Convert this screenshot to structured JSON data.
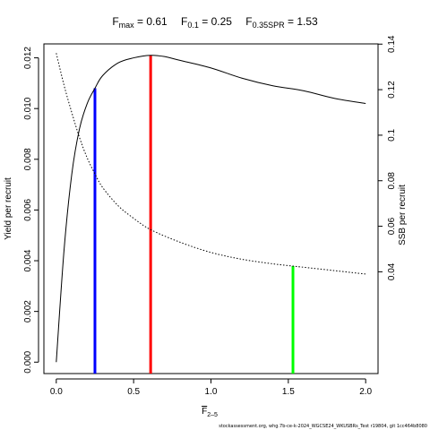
{
  "chart_data": {
    "type": "line",
    "title": {
      "fmax": {
        "main": "F",
        "sub": "max",
        "rest": " = 0.61"
      },
      "f01": {
        "main": "F",
        "sub": "0.1",
        "rest": " = 0.25"
      },
      "f035spr": {
        "main": "F",
        "sub": "0.35SPR",
        "rest": " = 1.53"
      }
    },
    "xlabel": {
      "main": "F",
      "sub": "2–5"
    },
    "ylabel_left": "Yield per recruit",
    "ylabel_right": "SSB per recruit",
    "x_ticks": [
      "0.0",
      "0.5",
      "1.0",
      "1.5",
      "2.0"
    ],
    "x_tick_values": [
      0,
      0.5,
      1.0,
      1.5,
      2.0
    ],
    "xlim": [
      -0.08,
      2.08
    ],
    "y_left_ticks": [
      "0.000",
      "0.002",
      "0.004",
      "0.006",
      "0.008",
      "0.010",
      "0.012"
    ],
    "y_left_tick_values": [
      0,
      0.002,
      0.004,
      0.006,
      0.008,
      0.01,
      0.012
    ],
    "ylim_left": [
      -0.00045,
      0.01255
    ],
    "y_right_ticks": [
      "0.04",
      "0.06",
      "0.08",
      "0.1",
      "0.12",
      "0.14"
    ],
    "y_right_tick_values": [
      0.04,
      0.06,
      0.08,
      0.1,
      0.12,
      0.14
    ],
    "ylim_right": [
      -0.0047,
      0.1401
    ],
    "series": [
      {
        "axis": "left",
        "style": "solid",
        "x": [
          0,
          0.05,
          0.1,
          0.15,
          0.2,
          0.25,
          0.3,
          0.4,
          0.5,
          0.61,
          0.7,
          0.8,
          1.0,
          1.2,
          1.4,
          1.6,
          1.8,
          2.0
        ],
        "y": [
          0,
          0.0044,
          0.0074,
          0.0092,
          0.0102,
          0.0108,
          0.0113,
          0.0118,
          0.012,
          0.0121,
          0.01205,
          0.0119,
          0.0116,
          0.0112,
          0.0109,
          0.0107,
          0.0104,
          0.0102
        ]
      },
      {
        "axis": "right",
        "style": "dotted",
        "x": [
          0,
          0.05,
          0.1,
          0.15,
          0.2,
          0.25,
          0.3,
          0.4,
          0.5,
          0.61,
          0.8,
          1.0,
          1.2,
          1.4,
          1.53,
          1.6,
          1.8,
          2.0
        ],
        "y": [
          0.136,
          0.122,
          0.11,
          0.099,
          0.09,
          0.083,
          0.077,
          0.069,
          0.0635,
          0.0585,
          0.053,
          0.0485,
          0.0455,
          0.0435,
          0.0425,
          0.042,
          0.0405,
          0.039
        ]
      }
    ],
    "reference_lines": [
      {
        "label": "F0.1",
        "x": 0.25,
        "axis": "left",
        "y": 0.0108,
        "color": "#0000ff"
      },
      {
        "label": "Fmax",
        "x": 0.61,
        "axis": "left",
        "y": 0.0121,
        "color": "#ff0000"
      },
      {
        "label": "F0.35SPR",
        "x": 1.53,
        "axis": "right",
        "y": 0.0425,
        "color": "#00ff00"
      }
    ],
    "grid": false,
    "credit": "stockassessment.org, whg.7b-ce-k-2024_WGCSE24_WKUSBRs_Test r19804, git 1cc464b8080"
  }
}
